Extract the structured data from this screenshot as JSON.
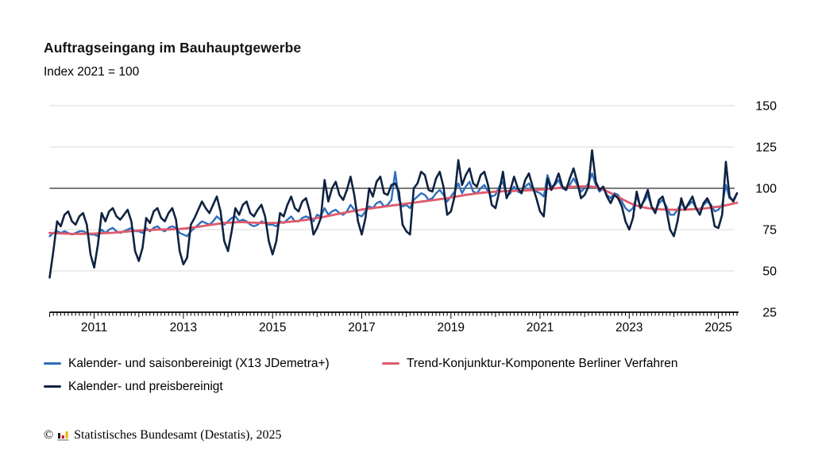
{
  "header": {
    "title": "Auftragseingang im Bauhauptgewerbe",
    "subtitle": "Index 2021 = 100"
  },
  "chart_data": {
    "type": "line",
    "title": "Auftragseingang im Bauhauptgewerbe",
    "subtitle": "Index 2021 = 100",
    "grid": true,
    "legend_position": "bottom-left",
    "x_axis": {
      "frequency": "monthly",
      "start_year": 2010,
      "start_month": 1,
      "months": 186,
      "labeled_years": [
        2011,
        2013,
        2015,
        2017,
        2019,
        2021,
        2023,
        2025
      ]
    },
    "y_axis": {
      "min": 25,
      "max": 150,
      "ticks": [
        25,
        50,
        75,
        100,
        125,
        150
      ],
      "highlight": 100
    },
    "ylim": [
      25,
      150
    ],
    "series": [
      {
        "name": "Kalender- und saisonbereinigt (X13 JDemetra+)",
        "color": "#2e6fbe",
        "width": 2.4,
        "values": [
          71,
          73,
          74,
          73,
          74,
          73,
          72,
          73,
          74,
          74,
          73,
          72,
          72,
          71,
          75,
          73,
          75,
          76,
          74,
          73,
          74,
          75,
          76,
          74,
          74,
          73,
          76,
          74,
          76,
          77,
          75,
          74,
          76,
          77,
          76,
          73,
          72,
          71,
          74,
          76,
          78,
          80,
          79,
          78,
          80,
          83,
          81,
          78,
          80,
          82,
          83,
          80,
          81,
          80,
          78,
          77,
          78,
          80,
          79,
          78,
          78,
          77,
          80,
          79,
          81,
          83,
          80,
          80,
          82,
          83,
          82,
          80,
          84,
          83,
          88,
          84,
          86,
          87,
          85,
          84,
          86,
          90,
          87,
          84,
          83,
          86,
          89,
          88,
          91,
          92,
          89,
          90,
          93,
          110,
          93,
          89,
          90,
          88,
          93,
          95,
          97,
          96,
          93,
          94,
          97,
          99,
          96,
          92,
          95,
          98,
          103,
          97,
          101,
          104,
          98,
          97,
          100,
          102,
          98,
          95,
          96,
          101,
          104,
          95,
          97,
          101,
          98,
          97,
          101,
          103,
          99,
          98,
          97,
          95,
          108,
          101,
          102,
          105,
          100,
          99,
          102,
          106,
          102,
          98,
          100,
          103,
          109,
          102,
          98,
          100,
          96,
          94,
          97,
          96,
          92,
          88,
          86,
          88,
          95,
          89,
          92,
          96,
          89,
          86,
          91,
          93,
          89,
          84,
          84,
          87,
          91,
          88,
          90,
          92,
          88,
          87,
          90,
          92,
          90,
          86,
          87,
          90,
          102,
          94,
          93,
          97
        ]
      },
      {
        "name": "Trend-Konjunktur-Komponente Berliner Verfahren",
        "color": "#e05a6b",
        "width": 2.8,
        "values": [
          73,
          72.9,
          72.8,
          72.7,
          72.6,
          72.5,
          72.4,
          72.4,
          72.4,
          72.4,
          72.5,
          72.5,
          72.6,
          72.7,
          72.8,
          72.9,
          73,
          73.1,
          73.3,
          73.5,
          73.7,
          73.9,
          74.1,
          74.3,
          74.5,
          74.6,
          74.7,
          74.8,
          74.9,
          75,
          75,
          75.1,
          75.1,
          75.2,
          75.3,
          75.4,
          75.6,
          75.8,
          76.1,
          76.4,
          76.7,
          77,
          77.4,
          77.8,
          78.1,
          78.4,
          78.7,
          79,
          79.2,
          79.3,
          79.4,
          79.5,
          79.5,
          79.4,
          79.3,
          79.2,
          79.1,
          79,
          79,
          79,
          79,
          79.1,
          79.2,
          79.4,
          79.6,
          79.8,
          80,
          80.3,
          80.6,
          80.9,
          81.2,
          81.6,
          82,
          82.4,
          82.8,
          83.3,
          83.7,
          84.2,
          84.6,
          85.1,
          85.5,
          85.9,
          86.3,
          86.7,
          87.1,
          87.4,
          87.7,
          88,
          88.3,
          88.6,
          88.9,
          89.2,
          89.5,
          89.8,
          90.1,
          90.4,
          90.7,
          91,
          91.3,
          91.6,
          91.9,
          92.2,
          92.5,
          92.8,
          93.1,
          93.4,
          93.7,
          94,
          94.4,
          94.8,
          95.2,
          95.6,
          96,
          96.3,
          96.6,
          96.9,
          97.2,
          97.4,
          97.6,
          97.8,
          98,
          98.1,
          98.2,
          98.3,
          98.4,
          98.4,
          98.5,
          98.6,
          98.7,
          98.8,
          98.9,
          99,
          99.2,
          99.4,
          99.6,
          99.8,
          100,
          100.2,
          100.4,
          100.6,
          100.8,
          100.9,
          101,
          101.1,
          101.2,
          101.2,
          101,
          100.6,
          100,
          99.2,
          98.2,
          97.1,
          96,
          94.8,
          93.6,
          92.4,
          91.3,
          90.3,
          89.5,
          88.9,
          88.4,
          88,
          87.7,
          87.5,
          87.3,
          87.2,
          87.1,
          87,
          87,
          87,
          87,
          87.1,
          87.2,
          87.3,
          87.4,
          87.6,
          87.8,
          88,
          88.3,
          88.6,
          88.9,
          89.3,
          89.7,
          90.2,
          90.7,
          91.2
        ]
      },
      {
        "name": "Kalender- und preisbereinigt",
        "color": "#0f2240",
        "width": 2.6,
        "values": [
          46,
          62,
          80,
          77,
          84,
          86,
          80,
          78,
          83,
          85,
          78,
          60,
          52,
          66,
          85,
          80,
          86,
          88,
          83,
          81,
          84,
          87,
          80,
          62,
          56,
          64,
          82,
          79,
          86,
          88,
          82,
          80,
          85,
          88,
          81,
          62,
          54,
          58,
          78,
          82,
          87,
          92,
          88,
          85,
          90,
          95,
          86,
          68,
          62,
          74,
          88,
          84,
          90,
          92,
          85,
          83,
          87,
          90,
          83,
          68,
          60,
          68,
          85,
          83,
          90,
          95,
          88,
          86,
          92,
          94,
          86,
          72,
          76,
          82,
          105,
          92,
          100,
          104,
          96,
          93,
          99,
          107,
          96,
          80,
          72,
          82,
          100,
          95,
          104,
          107,
          97,
          96,
          102,
          103,
          98,
          78,
          74,
          72,
          100,
          103,
          110,
          108,
          99,
          98,
          106,
          110,
          101,
          84,
          86,
          95,
          117,
          102,
          108,
          112,
          103,
          101,
          108,
          110,
          102,
          90,
          88,
          98,
          110,
          94,
          99,
          107,
          100,
          97,
          105,
          109,
          101,
          94,
          86,
          83,
          106,
          99,
          103,
          109,
          101,
          99,
          106,
          112,
          104,
          94,
          96,
          101,
          123,
          104,
          99,
          101,
          95,
          91,
          96,
          94,
          89,
          80,
          75,
          82,
          98,
          88,
          93,
          99,
          89,
          85,
          93,
          95,
          87,
          75,
          71,
          80,
          94,
          87,
          91,
          95,
          88,
          84,
          91,
          94,
          89,
          77,
          76,
          84,
          116,
          95,
          92,
          97
        ]
      }
    ],
    "colors": {
      "grid": "#d9d9d9",
      "grid_highlight": "#7a7a7a",
      "axis": "#000000"
    }
  },
  "footer": {
    "copyright": "©",
    "source": "Statistisches Bundesamt (Destatis), 2025"
  }
}
